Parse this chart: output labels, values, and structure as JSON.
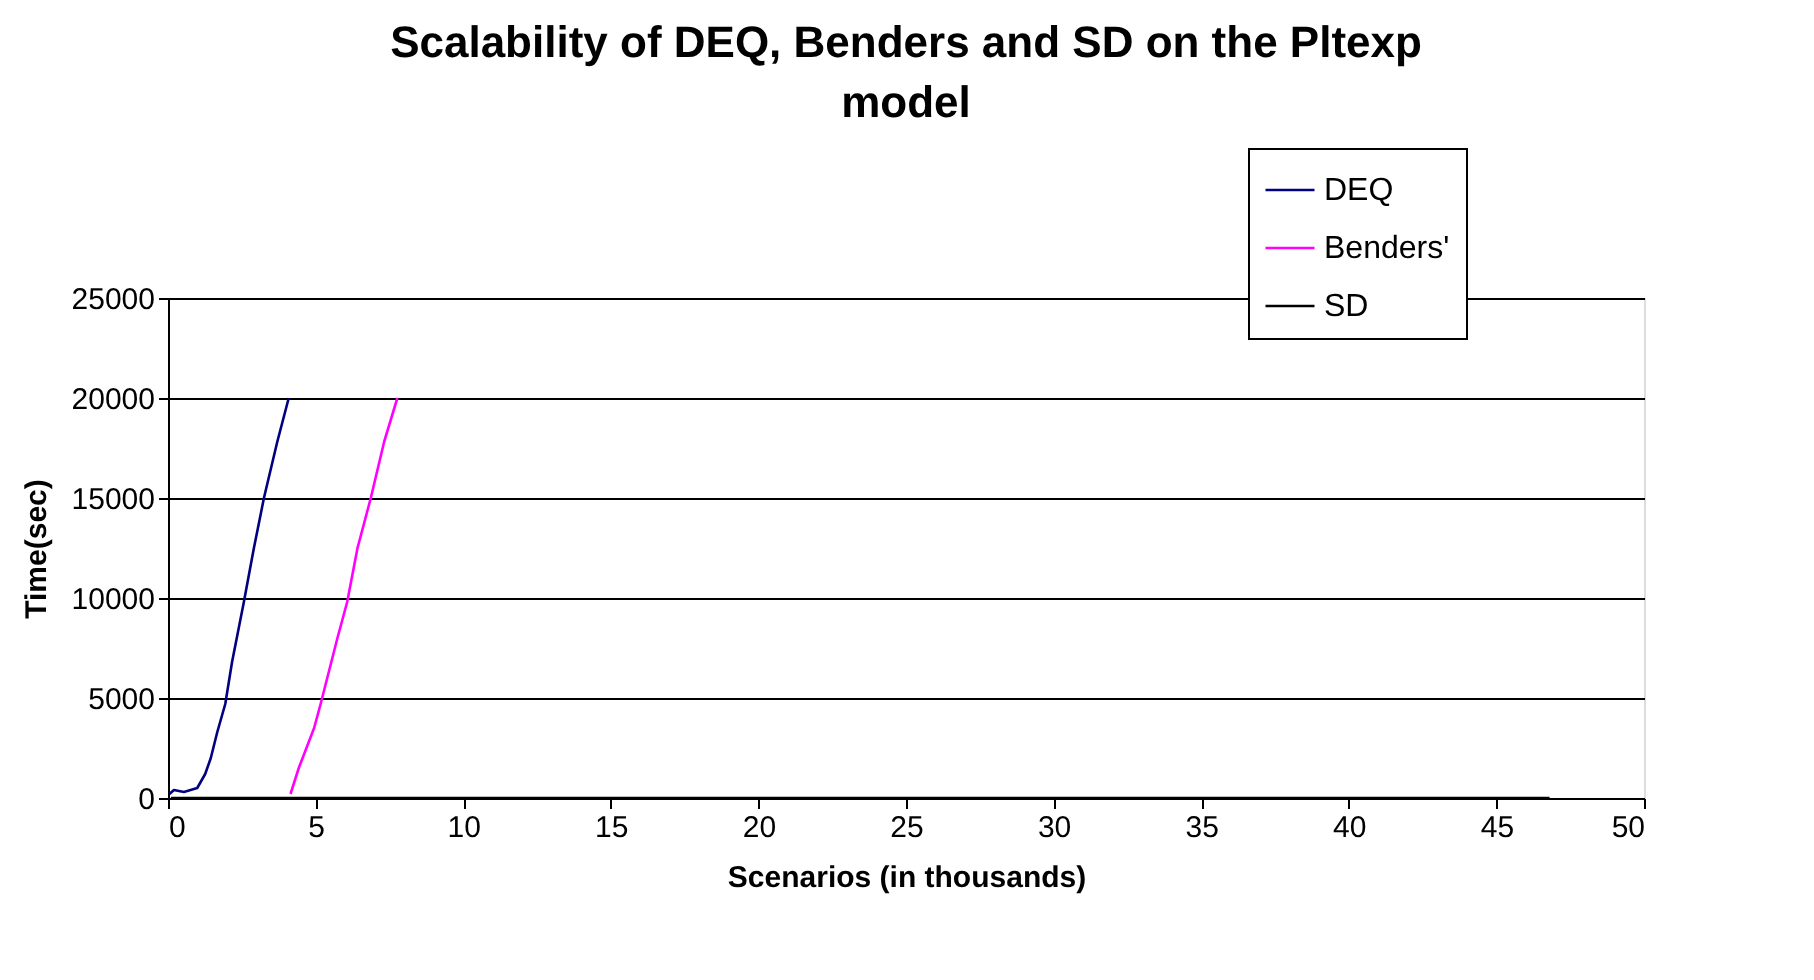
{
  "chart_data": {
    "type": "line",
    "title": "Scalability of DEQ, Benders and SD on the Pltexp model",
    "xlabel": "Scenarios (in thousands)",
    "ylabel": "Time(sec)",
    "xlim": [
      0,
      50
    ],
    "xticks": [
      0,
      5,
      10,
      15,
      20,
      25,
      30,
      35,
      40,
      45,
      50
    ],
    "ylim": [
      0,
      25000
    ],
    "yticks": [
      0,
      5000,
      10000,
      15000,
      20000,
      25000
    ],
    "grid": "y",
    "legend": "top right",
    "marker": "none",
    "line_style": "solid",
    "series": [
      {
        "name": "DEQ",
        "color": "#000080",
        "x": [
          0.05,
          0.2,
          0.54,
          0.99,
          1.26,
          1.45,
          1.67,
          1.94,
          2.17,
          2.57,
          2.91,
          3.25,
          3.7,
          4.09
        ],
        "values": [
          200,
          400,
          300,
          500,
          1200,
          2000,
          3300,
          4700,
          6800,
          9800,
          12500,
          15000,
          17800,
          20000
        ]
      },
      {
        "name": "Benders'",
        "color": "#ff00ff",
        "x": [
          4.15,
          4.43,
          4.95,
          5.17,
          5.74,
          6.07,
          6.42,
          6.87,
          7.32,
          7.77
        ],
        "values": [
          200,
          1500,
          3500,
          4700,
          8000,
          9800,
          12500,
          15000,
          17800,
          20000
        ]
      },
      {
        "name": "SD",
        "color": "#000000",
        "x": [
          0.1,
          46.8
        ],
        "values": [
          0,
          0
        ]
      }
    ]
  }
}
